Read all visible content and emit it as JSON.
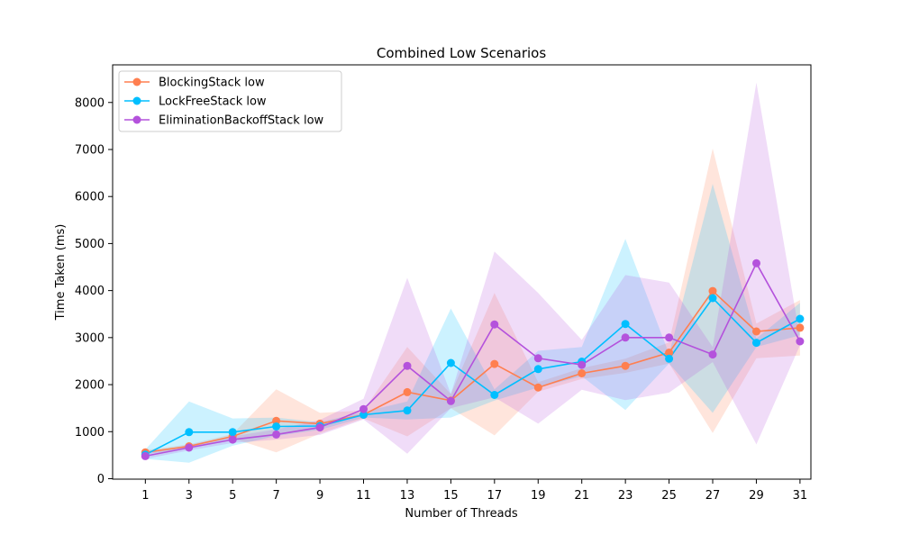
{
  "chart_data": {
    "type": "line",
    "title": "Combined Low Scenarios",
    "xlabel": "Number of Threads",
    "ylabel": "Time Taken (ms)",
    "xlim": [
      -0.5,
      31.5
    ],
    "ylim": [
      -10,
      8800
    ],
    "x_ticks": [
      1,
      3,
      5,
      7,
      9,
      11,
      13,
      15,
      17,
      19,
      21,
      23,
      25,
      27,
      29,
      31
    ],
    "y_ticks": [
      0,
      1000,
      2000,
      3000,
      4000,
      5000,
      6000,
      7000,
      8000
    ],
    "grid": false,
    "legend_position": "top-left",
    "x": [
      1,
      3,
      5,
      7,
      9,
      11,
      13,
      15,
      17,
      19,
      21,
      23,
      25,
      27,
      29,
      31
    ],
    "series": [
      {
        "name": "BlockingStack low",
        "color": "#ff7f50",
        "values": [
          560,
          690,
          900,
          1230,
          1170,
          1360,
          1840,
          1660,
          2440,
          1940,
          2240,
          2400,
          2680,
          3990,
          3130,
          3210
        ],
        "band_upper": [
          610,
          730,
          950,
          1900,
          1400,
          1450,
          2800,
          1800,
          3950,
          2050,
          2350,
          2550,
          2900,
          7020,
          3300,
          3800
        ],
        "band_lower": [
          520,
          640,
          860,
          560,
          960,
          1280,
          900,
          1500,
          920,
          1850,
          2120,
          2250,
          2450,
          970,
          2560,
          2620
        ]
      },
      {
        "name": "LockFreeStack low",
        "color": "#00bfff",
        "values": [
          510,
          990,
          990,
          1110,
          1120,
          1360,
          1450,
          2460,
          1780,
          2330,
          2490,
          3290,
          2550,
          3840,
          2890,
          3400
        ],
        "band_upper": [
          620,
          1640,
          1280,
          1300,
          1200,
          1420,
          1640,
          3620,
          1900,
          2720,
          2800,
          5100,
          2650,
          6270,
          2980,
          3740
        ],
        "band_lower": [
          420,
          340,
          700,
          910,
          1040,
          1300,
          1260,
          1300,
          1660,
          1940,
          2180,
          1460,
          2450,
          1400,
          2800,
          3050
        ]
      },
      {
        "name": "EliminationBackoffStack low",
        "color": "#b452dc",
        "values": [
          480,
          660,
          830,
          940,
          1090,
          1480,
          2400,
          1650,
          3280,
          2560,
          2420,
          3000,
          3000,
          2640,
          4580,
          2920
        ],
        "band_upper": [
          540,
          720,
          900,
          1050,
          1250,
          1700,
          4270,
          1800,
          4830,
          3950,
          2950,
          4330,
          4170,
          2800,
          8420,
          3000
        ],
        "band_lower": [
          420,
          600,
          760,
          830,
          930,
          1260,
          530,
          1500,
          1730,
          1170,
          1890,
          1670,
          1830,
          2480,
          730,
          2840
        ]
      }
    ]
  }
}
